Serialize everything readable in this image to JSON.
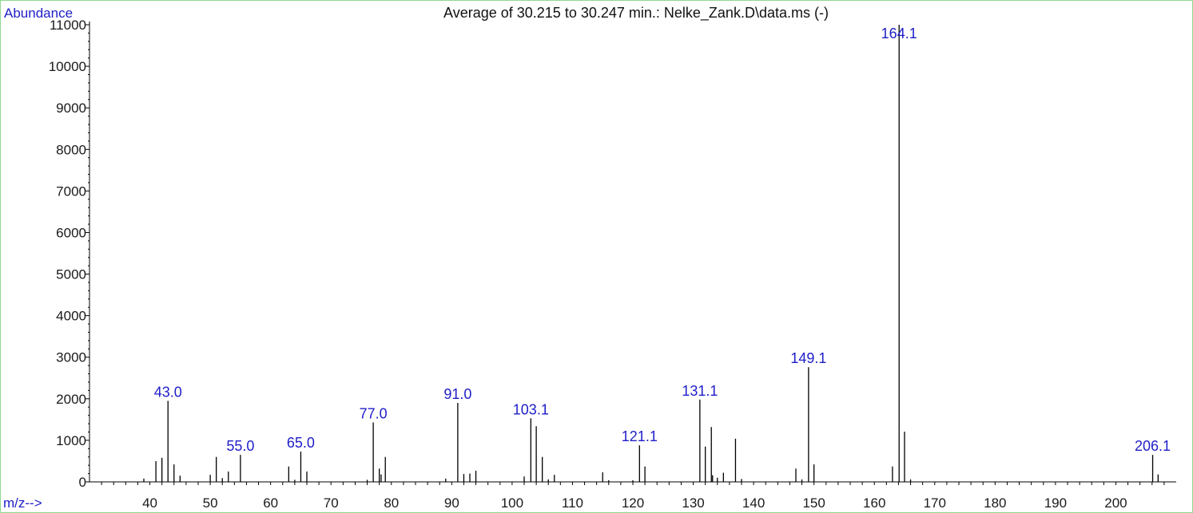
{
  "chart_data": {
    "type": "bar",
    "title": "Average of 30.215 to 30.247 min.: Nelke_Zank.D\\data.ms (-)",
    "ylabel": "Abundance",
    "xlabel": "m/z-->",
    "xlim": [
      30,
      210
    ],
    "ylim": [
      0,
      11000
    ],
    "x_ticks": [
      40,
      50,
      60,
      70,
      80,
      90,
      100,
      110,
      120,
      130,
      140,
      150,
      160,
      170,
      180,
      190,
      200
    ],
    "y_ticks": [
      0,
      1000,
      2000,
      3000,
      4000,
      5000,
      6000,
      7000,
      8000,
      9000,
      10000,
      11000
    ],
    "peaks": [
      {
        "mz": 39.0,
        "abundance": 80
      },
      {
        "mz": 41.0,
        "abundance": 500
      },
      {
        "mz": 42.0,
        "abundance": 580
      },
      {
        "mz": 43.0,
        "abundance": 1950,
        "label": "43.0"
      },
      {
        "mz": 44.0,
        "abundance": 420
      },
      {
        "mz": 45.0,
        "abundance": 150
      },
      {
        "mz": 50.0,
        "abundance": 170
      },
      {
        "mz": 51.0,
        "abundance": 600
      },
      {
        "mz": 52.0,
        "abundance": 90
      },
      {
        "mz": 53.0,
        "abundance": 250
      },
      {
        "mz": 55.0,
        "abundance": 650,
        "label": "55.0"
      },
      {
        "mz": 63.0,
        "abundance": 370
      },
      {
        "mz": 64.0,
        "abundance": 50
      },
      {
        "mz": 65.0,
        "abundance": 730,
        "label": "65.0"
      },
      {
        "mz": 66.0,
        "abundance": 250
      },
      {
        "mz": 76.0,
        "abundance": 50
      },
      {
        "mz": 77.0,
        "abundance": 1430,
        "label": "77.0"
      },
      {
        "mz": 78.0,
        "abundance": 320
      },
      {
        "mz": 78.3,
        "abundance": 180
      },
      {
        "mz": 79.0,
        "abundance": 600
      },
      {
        "mz": 89.0,
        "abundance": 80
      },
      {
        "mz": 91.0,
        "abundance": 1900,
        "label": "91.0"
      },
      {
        "mz": 92.0,
        "abundance": 190
      },
      {
        "mz": 93.0,
        "abundance": 200
      },
      {
        "mz": 94.0,
        "abundance": 270
      },
      {
        "mz": 102.0,
        "abundance": 130
      },
      {
        "mz": 103.1,
        "abundance": 1530,
        "label": "103.1"
      },
      {
        "mz": 104.0,
        "abundance": 1340
      },
      {
        "mz": 105.0,
        "abundance": 600
      },
      {
        "mz": 106.0,
        "abundance": 60
      },
      {
        "mz": 107.0,
        "abundance": 170
      },
      {
        "mz": 115.0,
        "abundance": 230
      },
      {
        "mz": 116.0,
        "abundance": 40
      },
      {
        "mz": 120.0,
        "abundance": 40
      },
      {
        "mz": 121.1,
        "abundance": 880,
        "label": "121.1"
      },
      {
        "mz": 122.0,
        "abundance": 370
      },
      {
        "mz": 131.1,
        "abundance": 1980,
        "label": "131.1"
      },
      {
        "mz": 132.0,
        "abundance": 850
      },
      {
        "mz": 133.0,
        "abundance": 1320
      },
      {
        "mz": 133.2,
        "abundance": 160
      },
      {
        "mz": 134.0,
        "abundance": 100
      },
      {
        "mz": 135.0,
        "abundance": 220
      },
      {
        "mz": 137.0,
        "abundance": 1040
      },
      {
        "mz": 138.0,
        "abundance": 70
      },
      {
        "mz": 147.0,
        "abundance": 320
      },
      {
        "mz": 148.0,
        "abundance": 60
      },
      {
        "mz": 149.1,
        "abundance": 2760,
        "label": "149.1"
      },
      {
        "mz": 150.0,
        "abundance": 420
      },
      {
        "mz": 163.0,
        "abundance": 370
      },
      {
        "mz": 164.1,
        "abundance": 11000,
        "label": "164.1"
      },
      {
        "mz": 165.0,
        "abundance": 1210
      },
      {
        "mz": 166.0,
        "abundance": 60
      },
      {
        "mz": 206.1,
        "abundance": 650,
        "label": "206.1"
      },
      {
        "mz": 207.0,
        "abundance": 180
      }
    ],
    "colors": {
      "axis": "#000000",
      "bars": "#000000",
      "peak_labels": "#1e1ec8",
      "frame": "#8fd98f"
    }
  }
}
